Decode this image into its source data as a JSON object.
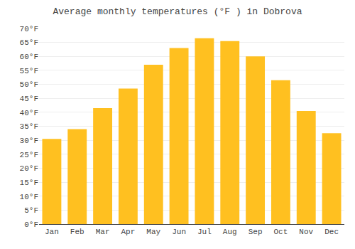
{
  "chart_data": {
    "type": "bar",
    "title": "Average monthly temperatures (°F ) in Dobrova",
    "categories": [
      "Jan",
      "Feb",
      "Mar",
      "Apr",
      "May",
      "Jun",
      "Jul",
      "Aug",
      "Sep",
      "Oct",
      "Nov",
      "Dec"
    ],
    "values": [
      30.5,
      34,
      41.5,
      48.5,
      57,
      63,
      66.5,
      65.5,
      60,
      51.5,
      40.5,
      32.5
    ],
    "color": "#FFC020",
    "ylim": [
      0,
      70
    ],
    "yticks": [
      {
        "value": 0,
        "label": "0°F"
      },
      {
        "value": 5,
        "label": "5°F"
      },
      {
        "value": 10,
        "label": "10°F"
      },
      {
        "value": 15,
        "label": "15°F"
      },
      {
        "value": 20,
        "label": "20°F"
      },
      {
        "value": 25,
        "label": "25°F"
      },
      {
        "value": 30,
        "label": "30°F"
      },
      {
        "value": 35,
        "label": "35°F"
      },
      {
        "value": 40,
        "label": "40°F"
      },
      {
        "value": 45,
        "label": "45°F"
      },
      {
        "value": 50,
        "label": "50°F"
      },
      {
        "value": 55,
        "label": "55°F"
      },
      {
        "value": 60,
        "label": "60°F"
      },
      {
        "value": 65,
        "label": "65°F"
      },
      {
        "value": 70,
        "label": "70°F"
      }
    ],
    "grid": true
  }
}
